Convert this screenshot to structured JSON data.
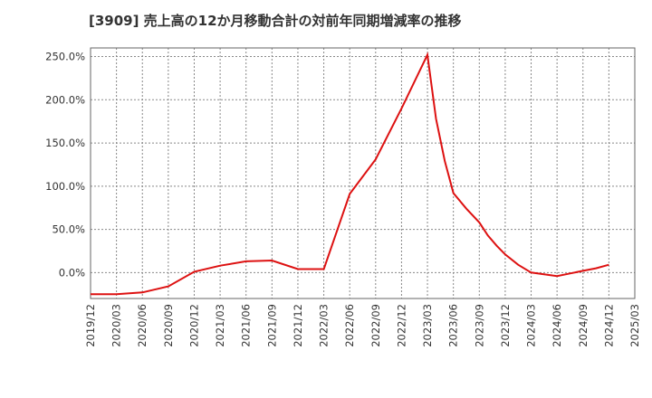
{
  "chart_data": {
    "type": "line",
    "title": "[3909]  売上高の12か月移動合計の対前年同期増減率の推移",
    "xlabel": "",
    "ylabel": "",
    "ylim": [
      -30,
      260
    ],
    "y_ticks": [
      0,
      50,
      100,
      150,
      200,
      250
    ],
    "y_tick_labels": [
      "0.0%",
      "50.0%",
      "100.0%",
      "150.0%",
      "200.0%",
      "250.0%"
    ],
    "x_ticks": [
      "2019/12",
      "2020/03",
      "2020/06",
      "2020/09",
      "2020/12",
      "2021/03",
      "2021/06",
      "2021/09",
      "2021/12",
      "2022/03",
      "2022/06",
      "2022/09",
      "2022/12",
      "2023/03",
      "2023/06",
      "2023/09",
      "2023/12",
      "2024/03",
      "2024/06",
      "2024/09",
      "2024/12",
      "2025/03"
    ],
    "grid": true,
    "line_color": "#dd1111",
    "series": [
      {
        "name": "増減率",
        "x": [
          0,
          1,
          2,
          3,
          4,
          5,
          6,
          7,
          8,
          9,
          10,
          11,
          12,
          13,
          13.33,
          13.67,
          14,
          14.5,
          15,
          15.33,
          15.67,
          16,
          16.5,
          17,
          17.5,
          18,
          18.5,
          19,
          19.5,
          20
        ],
        "values": [
          -25,
          -25,
          -23,
          -16,
          1,
          8,
          13,
          14,
          4,
          4,
          91,
          131,
          190,
          252,
          178,
          129,
          92,
          74,
          58,
          43,
          31,
          21,
          9,
          0,
          -2,
          -4,
          -1,
          2,
          5,
          9
        ]
      }
    ]
  }
}
